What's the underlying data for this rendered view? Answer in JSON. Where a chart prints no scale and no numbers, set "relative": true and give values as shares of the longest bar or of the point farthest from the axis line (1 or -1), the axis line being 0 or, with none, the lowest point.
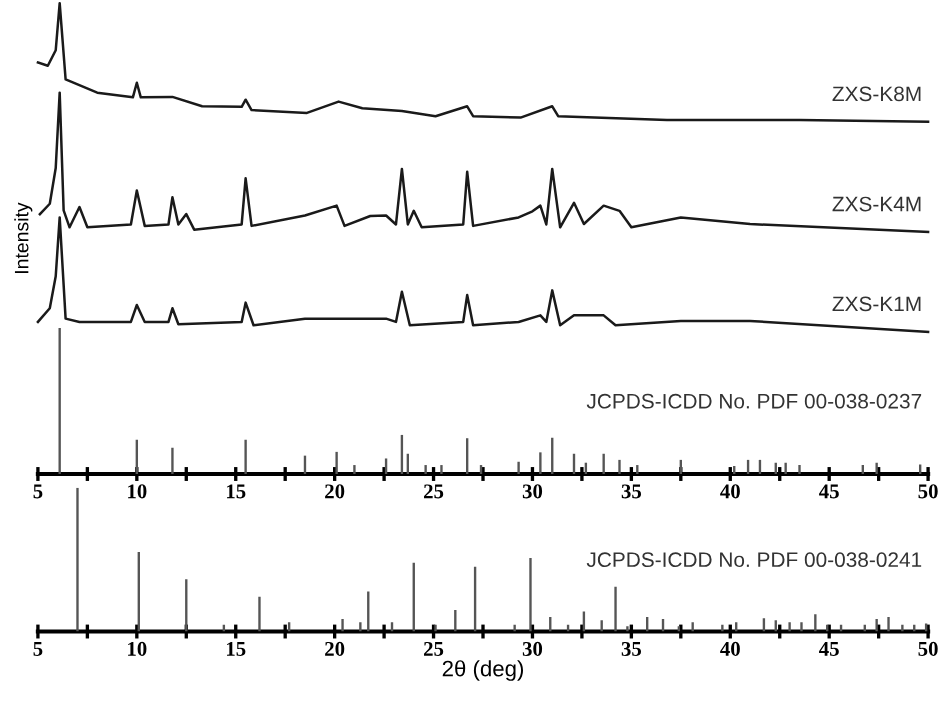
{
  "chart_data": [
    {
      "type": "line",
      "relative": true,
      "ylabel": "Intensity",
      "tick_labels": "x",
      "grid": false,
      "legend": false,
      "marker": "none",
      "line_style": "solid",
      "xlim": [
        5,
        50
      ],
      "xticks": [
        5,
        {
          "value": 7.5,
          "label": null
        },
        10,
        {
          "value": 12.5,
          "label": null
        },
        15,
        {
          "value": 17.5,
          "label": null
        },
        20,
        {
          "value": 22.5,
          "label": null
        },
        25,
        {
          "value": 27.5,
          "label": null
        },
        30,
        {
          "value": 32.5,
          "label": null
        },
        35,
        {
          "value": 37.5,
          "label": null
        },
        40,
        {
          "value": 42.5,
          "label": null
        },
        45,
        {
          "value": 47.5,
          "label": null
        },
        50
      ],
      "series": [
        {
          "name": "ZXS-K8M",
          "color": "#1a1a1a",
          "x": [
            5.0,
            5.5,
            5.9,
            6.1,
            6.4,
            8.0,
            9.8,
            10.0,
            10.2,
            11.8,
            13.3,
            15.3,
            15.5,
            15.8,
            18.6,
            20.2,
            21.4,
            23.4,
            25.1,
            26.7,
            27.0,
            29.4,
            31.0,
            31.3,
            36.8,
            43.5,
            50.0
          ],
          "values": [
            0.874,
            0.867,
            0.9,
            1.0,
            0.838,
            0.81,
            0.8,
            0.831,
            0.8,
            0.801,
            0.781,
            0.78,
            0.795,
            0.773,
            0.767,
            0.791,
            0.777,
            0.771,
            0.76,
            0.781,
            0.76,
            0.757,
            0.781,
            0.76,
            0.752,
            0.752,
            0.748
          ]
        },
        {
          "name": "ZXS-K4M",
          "color": "#1a1a1a",
          "x": [
            5.1,
            5.6,
            5.9,
            6.1,
            6.3,
            6.6,
            7.1,
            7.5,
            9.7,
            10.0,
            10.4,
            11.6,
            11.8,
            12.1,
            12.5,
            12.9,
            15.3,
            15.5,
            15.8,
            18.5,
            20.1,
            20.5,
            21.8,
            22.6,
            23.1,
            23.4,
            23.7,
            24.0,
            24.4,
            26.5,
            26.7,
            27.0,
            29.3,
            30.0,
            30.4,
            30.7,
            31.0,
            31.4,
            32.1,
            32.6,
            33.6,
            34.4,
            35.0,
            37.5,
            41.0,
            50.0
          ],
          "values": [
            0.552,
            0.574,
            0.65,
            0.81,
            0.56,
            0.524,
            0.567,
            0.524,
            0.53,
            0.602,
            0.527,
            0.53,
            0.588,
            0.53,
            0.552,
            0.519,
            0.53,
            0.628,
            0.527,
            0.549,
            0.57,
            0.527,
            0.548,
            0.549,
            0.53,
            0.648,
            0.53,
            0.559,
            0.524,
            0.53,
            0.642,
            0.527,
            0.545,
            0.558,
            0.57,
            0.53,
            0.648,
            0.524,
            0.576,
            0.531,
            0.57,
            0.559,
            0.524,
            0.545,
            0.531,
            0.514
          ]
        },
        {
          "name": "ZXS-K1M",
          "color": "#1a1a1a",
          "x": [
            5.0,
            5.6,
            5.9,
            6.1,
            6.4,
            7.1,
            9.7,
            10.0,
            10.4,
            11.6,
            11.8,
            12.1,
            15.3,
            15.5,
            15.9,
            18.5,
            20.1,
            22.6,
            23.1,
            23.4,
            23.8,
            26.5,
            26.7,
            27.0,
            29.3,
            30.4,
            30.7,
            31.0,
            31.4,
            32.1,
            33.6,
            34.2,
            37.5,
            41.0,
            50.0
          ],
          "values": [
            0.323,
            0.352,
            0.42,
            0.545,
            0.33,
            0.323,
            0.323,
            0.359,
            0.323,
            0.323,
            0.352,
            0.318,
            0.323,
            0.364,
            0.316,
            0.33,
            0.33,
            0.33,
            0.323,
            0.387,
            0.316,
            0.323,
            0.38,
            0.316,
            0.323,
            0.337,
            0.323,
            0.39,
            0.316,
            0.337,
            0.337,
            0.316,
            0.325,
            0.325,
            0.302
          ]
        },
        {
          "name": "JCPDS-ICDD No. PDF 00-038-0237",
          "type": "bar",
          "color": "#555555",
          "x": [
            6.1,
            10.0,
            11.8,
            15.5,
            18.5,
            20.1,
            21.0,
            22.6,
            23.4,
            23.7,
            24.6,
            25.4,
            26.7,
            27.4,
            29.3,
            30.4,
            31.0,
            32.1,
            32.7,
            33.6,
            34.4,
            35.3,
            37.5,
            40.2,
            40.9,
            41.5,
            42.3,
            42.8,
            43.5,
            46.7,
            47.4,
            49.6
          ],
          "values": [
            0.31,
            0.073,
            0.056,
            0.073,
            0.039,
            0.047,
            0.019,
            0.033,
            0.083,
            0.043,
            0.019,
            0.019,
            0.076,
            0.019,
            0.026,
            0.046,
            0.077,
            0.043,
            0.024,
            0.043,
            0.03,
            0.019,
            0.03,
            0.017,
            0.03,
            0.03,
            0.024,
            0.024,
            0.019,
            0.019,
            0.024,
            0.02
          ]
        }
      ]
    },
    {
      "type": "bar",
      "relative": true,
      "xlabel": "2θ (deg)",
      "tick_labels": "x",
      "grid": false,
      "legend": false,
      "xlim": [
        5,
        50
      ],
      "xticks": [
        5,
        {
          "value": 7.5,
          "label": null
        },
        10,
        {
          "value": 12.5,
          "label": null
        },
        15,
        {
          "value": 17.5,
          "label": null
        },
        20,
        {
          "value": 22.5,
          "label": null
        },
        25,
        {
          "value": 27.5,
          "label": null
        },
        30,
        {
          "value": 32.5,
          "label": null
        },
        35,
        {
          "value": 37.5,
          "label": null
        },
        40,
        {
          "value": 42.5,
          "label": null
        },
        45,
        {
          "value": 47.5,
          "label": null
        },
        50
      ],
      "series": [
        {
          "name": "JCPDS-ICDD No. PDF 00-038-0241",
          "color": "#555555",
          "x": [
            7.0,
            10.1,
            12.5,
            14.4,
            16.2,
            17.7,
            20.4,
            21.3,
            21.7,
            22.9,
            24.0,
            25.1,
            26.1,
            27.1,
            29.1,
            29.9,
            30.9,
            31.8,
            32.6,
            33.5,
            34.2,
            34.8,
            35.8,
            36.6,
            37.4,
            38.1,
            39.6,
            40.3,
            41.7,
            42.3,
            43.0,
            43.6,
            44.3,
            44.9,
            45.6,
            46.8,
            47.4,
            48.0,
            48.7,
            49.3,
            49.9
          ],
          "values": [
            1.0,
            0.553,
            0.363,
            0.047,
            0.242,
            0.065,
            0.088,
            0.065,
            0.279,
            0.065,
            0.479,
            0.047,
            0.149,
            0.451,
            0.047,
            0.512,
            0.102,
            0.047,
            0.14,
            0.079,
            0.312,
            0.037,
            0.102,
            0.088,
            0.037,
            0.065,
            0.047,
            0.065,
            0.093,
            0.079,
            0.065,
            0.065,
            0.121,
            0.047,
            0.047,
            0.047,
            0.088,
            0.102,
            0.047,
            0.047,
            0.056
          ]
        }
      ]
    }
  ]
}
